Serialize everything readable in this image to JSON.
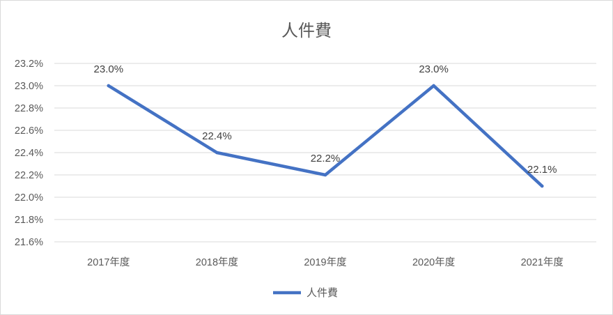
{
  "chart_data": {
    "type": "line",
    "title": "人件費",
    "categories": [
      "2017年度",
      "2018年度",
      "2019年度",
      "2020年度",
      "2021年度"
    ],
    "series": [
      {
        "name": "人件費",
        "color": "#4472c4",
        "values": [
          23.0,
          22.4,
          22.2,
          23.0,
          22.1
        ],
        "labels": [
          "23.0%",
          "22.4%",
          "22.2%",
          "23.0%",
          "22.1%"
        ]
      }
    ],
    "yticks": [
      "21.6%",
      "21.8%",
      "22.0%",
      "22.2%",
      "22.4%",
      "22.6%",
      "22.8%",
      "23.0%",
      "23.2%"
    ],
    "ylim": [
      21.6,
      23.2
    ],
    "grid": true,
    "legend": "bottom"
  }
}
